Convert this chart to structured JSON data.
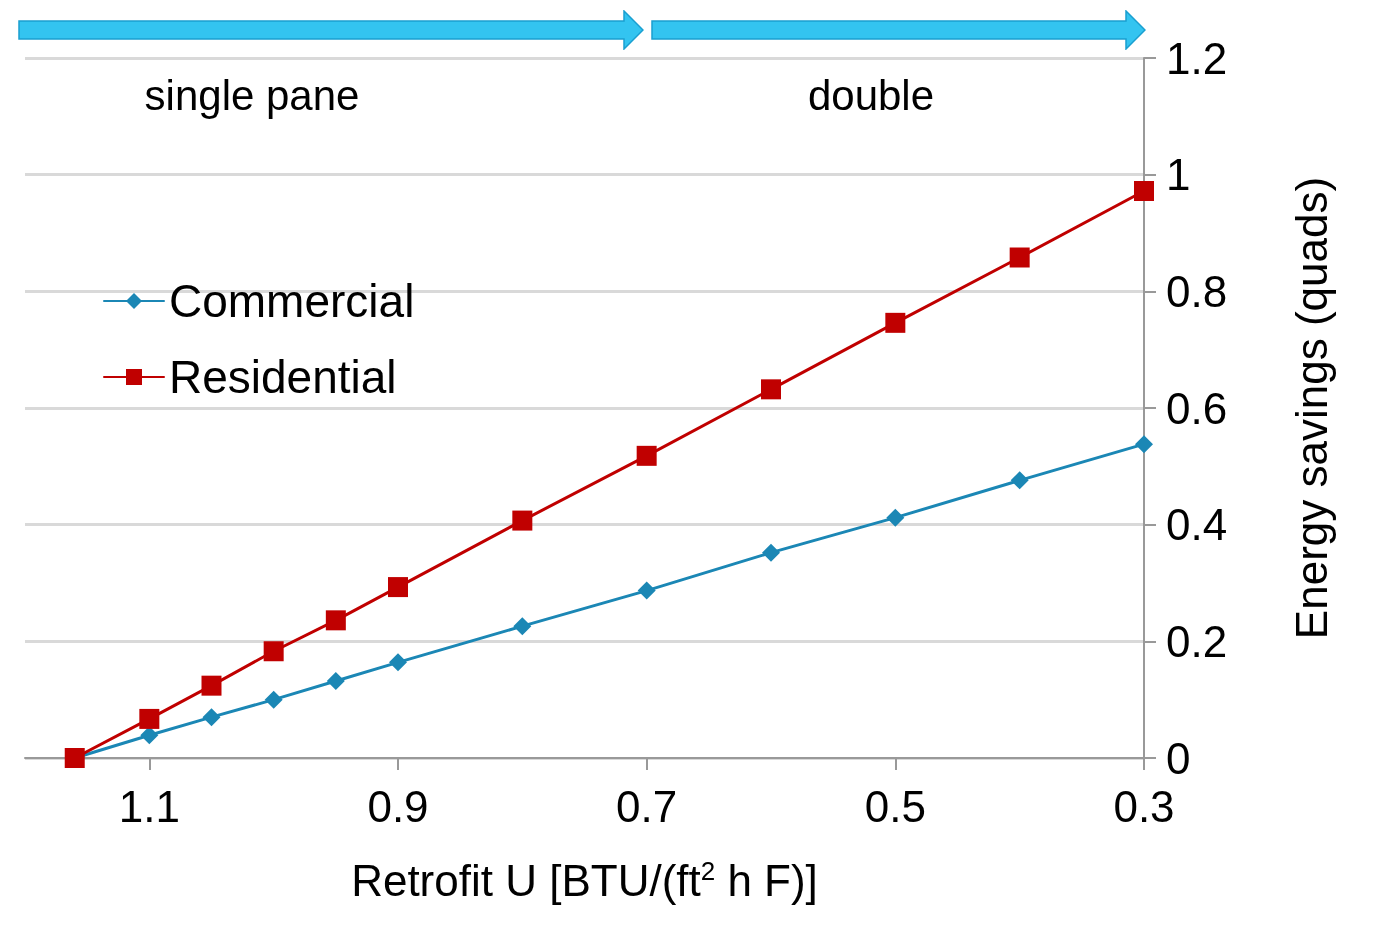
{
  "chart_data": {
    "type": "line",
    "xlabel": "Retrofit U [BTU/(ft$^{2}$ h F)]",
    "ylabel": "Energy savings (quads)",
    "x": [
      1.16,
      1.1,
      1.05,
      1.0,
      0.95,
      0.9,
      0.8,
      0.7,
      0.6,
      0.5,
      0.4,
      0.3
    ],
    "series": [
      {
        "name": "Commercial",
        "color": "#1b87b5",
        "marker": "diamond",
        "values": [
          0,
          0.039,
          0.07,
          0.1,
          0.132,
          0.164,
          0.226,
          0.287,
          0.352,
          0.412,
          0.476,
          0.538
        ]
      },
      {
        "name": "Residential",
        "color": "#c00000",
        "marker": "square",
        "values": [
          0,
          0.067,
          0.124,
          0.183,
          0.236,
          0.293,
          0.407,
          0.518,
          0.632,
          0.746,
          0.858,
          0.972
        ]
      }
    ],
    "xlim": [
      1.2,
      0.3
    ],
    "xticks": [
      1.1,
      0.9,
      0.7,
      0.5,
      0.3
    ],
    "ylim": [
      0,
      1.2
    ],
    "yticks": [
      0,
      0.2,
      0.4,
      0.6,
      0.8,
      1,
      1.2
    ],
    "grid": "y",
    "legend": "left",
    "annotations": [
      "single pane",
      "double"
    ]
  }
}
